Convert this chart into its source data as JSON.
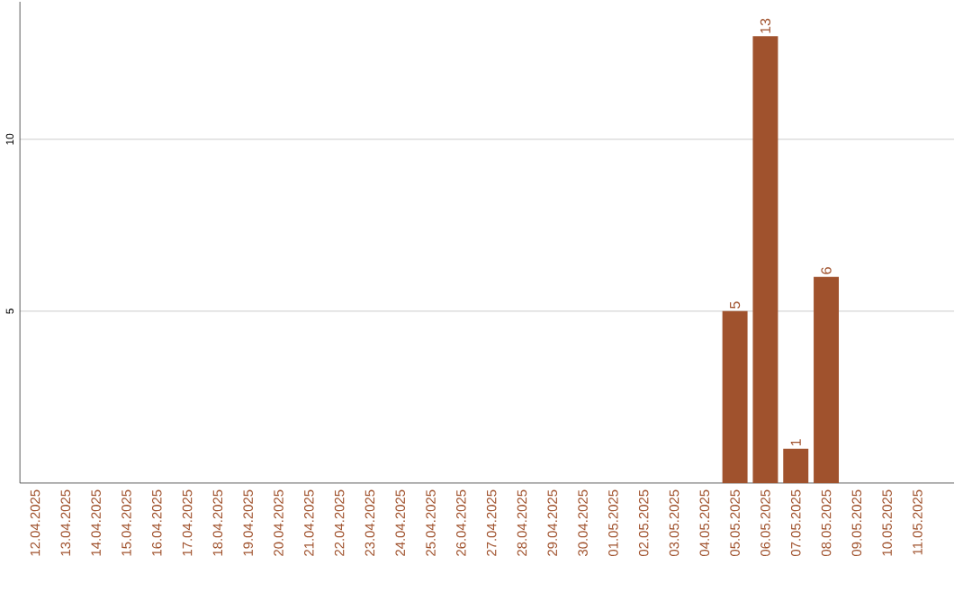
{
  "chart_data": {
    "type": "bar",
    "categories": [
      "12.04.2025",
      "13.04.2025",
      "14.04.2025",
      "15.04.2025",
      "16.04.2025",
      "17.04.2025",
      "18.04.2025",
      "19.04.2025",
      "20.04.2025",
      "21.04.2025",
      "22.04.2025",
      "23.04.2025",
      "24.04.2025",
      "25.04.2025",
      "26.04.2025",
      "27.04.2025",
      "28.04.2025",
      "29.04.2025",
      "30.04.2025",
      "01.05.2025",
      "02.05.2025",
      "03.05.2025",
      "04.05.2025",
      "05.05.2025",
      "06.05.2025",
      "07.05.2025",
      "08.05.2025",
      "09.05.2025",
      "10.05.2025",
      "11.05.2025"
    ],
    "values": [
      0,
      0,
      0,
      0,
      0,
      0,
      0,
      0,
      0,
      0,
      0,
      0,
      0,
      0,
      0,
      0,
      0,
      0,
      0,
      0,
      0,
      0,
      0,
      5,
      13,
      1,
      6,
      0,
      0,
      0
    ],
    "value_labels": [
      null,
      null,
      null,
      null,
      null,
      null,
      null,
      null,
      null,
      null,
      null,
      null,
      null,
      null,
      null,
      null,
      null,
      null,
      null,
      null,
      null,
      null,
      null,
      "5",
      "13",
      "1",
      "6",
      null,
      null,
      null
    ],
    "color": "#a0522d",
    "ylim": [
      0,
      14
    ],
    "yticks": [
      5,
      10
    ],
    "grid": "y"
  }
}
